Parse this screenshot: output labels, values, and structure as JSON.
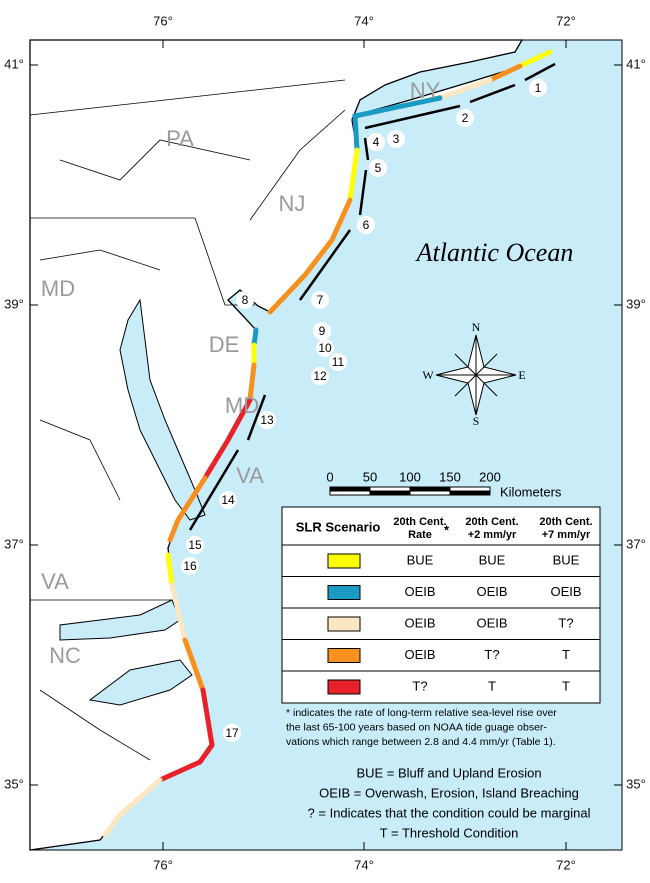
{
  "map": {
    "lon_labels_top": [
      "76°",
      "74°",
      "72°"
    ],
    "lon_labels_bottom": [
      "76°",
      "74°",
      "72°"
    ],
    "lat_labels_left": [
      "41°",
      "39°",
      "37°",
      "35°"
    ],
    "lat_labels_right": [
      "41°",
      "39°",
      "37°",
      "35°"
    ],
    "states": [
      "NY",
      "PA",
      "NJ",
      "MD",
      "DE",
      "MD",
      "VA",
      "VA",
      "NC"
    ],
    "ocean_label": "Atlantic Ocean",
    "compass": {
      "n": "N",
      "s": "S",
      "e": "E",
      "w": "W"
    },
    "scale": {
      "ticks": [
        "0",
        "50",
        "100",
        "150",
        "200"
      ],
      "unit": "Kilometers"
    },
    "segments": [
      "1",
      "2",
      "3",
      "4",
      "5",
      "6",
      "7",
      "8",
      "9",
      "10",
      "11",
      "12",
      "13",
      "14",
      "15",
      "16",
      "17"
    ]
  },
  "legend": {
    "headers": [
      [
        "SLR Scenario"
      ],
      [
        "20th Cent.",
        "Rate"
      ],
      [
        "20th Cent.",
        "+2 mm/yr"
      ],
      [
        "20th Cent.",
        "+7 mm/yr"
      ]
    ],
    "asterisk": "*",
    "rows": [
      {
        "color": "#ffff00",
        "cells": [
          "BUE",
          "BUE",
          "BUE"
        ]
      },
      {
        "color": "#1a9bc4",
        "cells": [
          "OEIB",
          "OEIB",
          "OEIB"
        ]
      },
      {
        "color": "#fce7c2",
        "cells": [
          "OEIB",
          "OEIB",
          "T?"
        ]
      },
      {
        "color": "#f7901e",
        "cells": [
          "OEIB",
          "T?",
          "T"
        ]
      },
      {
        "color": "#e8212b",
        "cells": [
          "T?",
          "T",
          "T"
        ]
      }
    ]
  },
  "notes": {
    "footnote": [
      "* indicates the rate of long-term relative sea-level rise over",
      "the last 65-100 years based on NOAA tide guage obser-",
      "vations which range between 2.8 and 4.4 mm/yr (Table 1)."
    ],
    "definitions": [
      "BUE = Bluff and Upland Erosion",
      "OEIB = Overwash, Erosion, Island Breaching",
      "? = Indicates that the condition could be marginal",
      "T = Threshold Condition"
    ]
  }
}
